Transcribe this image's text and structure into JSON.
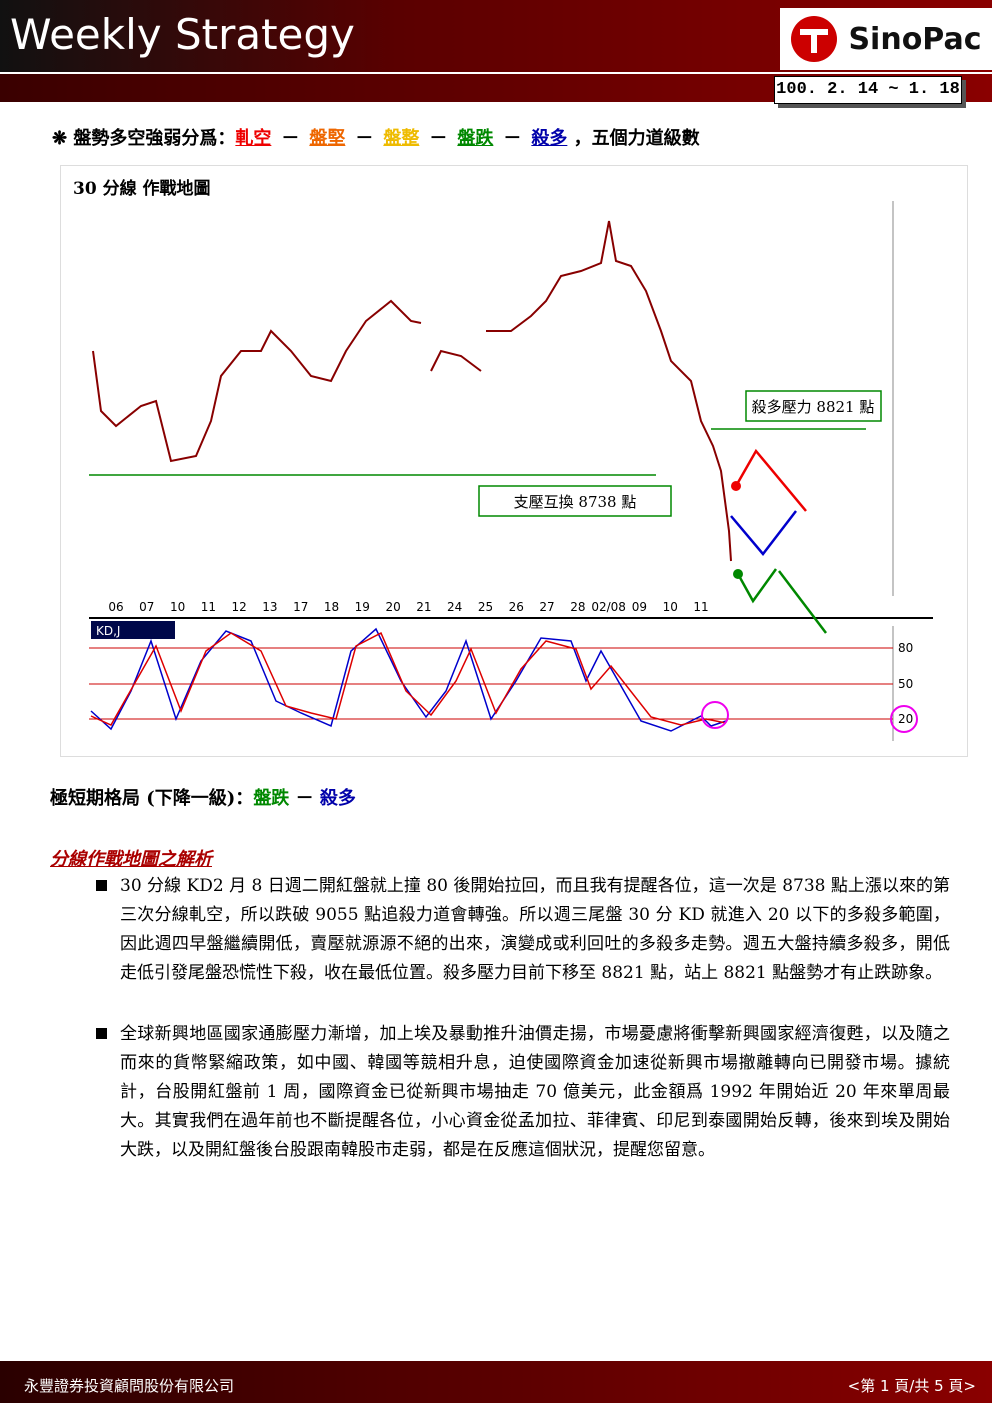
{
  "header": {
    "title": "Weekly Strategy",
    "brand": "SinoPac",
    "date": "100. 2. 14 ~ 1. 18"
  },
  "intro": {
    "prefix": "盤勢多空強弱分爲：",
    "levels": [
      "軋空",
      "盤堅",
      "盤整",
      "盤跌",
      "殺多"
    ],
    "separator": "－",
    "suffix": "，五個力道級數"
  },
  "chart": {
    "title": "30 分線  作戰地圖",
    "x_labels": [
      "06",
      "07",
      "10",
      "11",
      "12",
      "13",
      "17",
      "18",
      "19",
      "20",
      "21",
      "24",
      "25",
      "26",
      "27",
      "28",
      "02/08",
      "09",
      "10",
      "11"
    ],
    "resistance": "殺多壓力 8821 點",
    "support": "支壓互換 8738 點",
    "indicator": "KD,J",
    "kd_levels": [
      "80",
      "50",
      "20"
    ]
  },
  "status": {
    "label": "極短期格局 (下降一級)：",
    "first": "盤跌",
    "separator": "－",
    "second": "殺多"
  },
  "analysis": {
    "title": "分線作戰地圖之解析",
    "paragraphs": [
      "30 分線 KD2 月 8 日週二開紅盤就上撞 80 後開始拉回，而且我有提醒各位，這一次是 8738 點上漲以來的第三次分線軋空，所以跌破 9055 點追殺力道會轉強。所以週三尾盤 30 分 KD 就進入 20 以下的多殺多範圍，因此週四早盤繼續開低，賣壓就源源不絕的出來，演變成或利回吐的多殺多走勢。週五大盤持續多殺多，開低走低引發尾盤恐慌性下殺，收在最低位置。殺多壓力目前下移至 8821 點，站上 8821 點盤勢才有止跌跡象。",
      "全球新興地區國家通膨壓力漸增，加上埃及暴動推升油價走揚，市場憂慮將衝擊新興國家經濟復甦，以及隨之而來的貨幣緊縮政策，如中國、韓國等競相升息，迫使國際資金加速從新興市場撤離轉向已開發市場。據統計，台股開紅盤前 1 周，國際資金已從新興市場抽走 70 億美元，此金額爲 1992 年開始近 20 年來單周最大。其實我們在過年前也不斷提醒各位，小心資金從孟加拉、菲律賓、印尼到泰國開始反轉，後來到埃及開始大跌，以及開紅盤後台股跟南韓股市走弱，都是在反應這個狀況，提醒您留意。"
    ]
  },
  "footer": {
    "company": "永豐證券投資顧問股份有限公司",
    "page": "<第 1 頁/共 5 頁>"
  }
}
